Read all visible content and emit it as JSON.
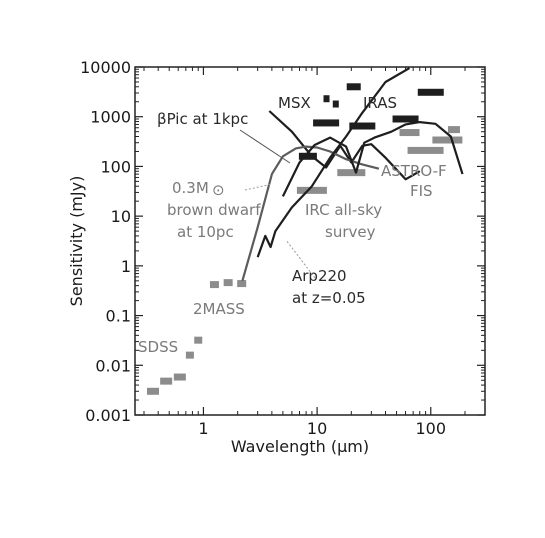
{
  "chart_data": {
    "type": "scatter",
    "xlabel": "Wavelength (µm)",
    "ylabel": "Sensitivity (mJy)",
    "x_scale": "log",
    "y_scale": "log",
    "xlim": [
      0.25,
      300
    ],
    "ylim": [
      0.001,
      10000
    ],
    "x_ticks": [
      {
        "value": 1,
        "label": "1"
      },
      {
        "value": 10,
        "label": "10"
      },
      {
        "value": 100,
        "label": "100"
      }
    ],
    "y_ticks": [
      {
        "value": 0.001,
        "label": "0.001"
      },
      {
        "value": 0.01,
        "label": "0.01"
      },
      {
        "value": 0.1,
        "label": "0.1"
      },
      {
        "value": 1,
        "label": "1"
      },
      {
        "value": 10,
        "label": "10"
      },
      {
        "value": 100,
        "label": "100"
      },
      {
        "value": 1000,
        "label": "1000"
      },
      {
        "value": 10000,
        "label": "10000"
      }
    ],
    "grid": false,
    "colors": {
      "dark": "#1e1e1e",
      "mid": "#5c5c5c",
      "light": "#8c8c8c"
    },
    "survey_limits": [
      {
        "survey": "SDSS",
        "shade": "light",
        "points": [
          [
            0.36,
            0.003
          ],
          [
            0.47,
            0.0048
          ],
          [
            0.62,
            0.0058
          ],
          [
            0.76,
            0.016
          ],
          [
            0.9,
            0.032
          ]
        ]
      },
      {
        "survey": "2MASS",
        "shade": "light",
        "points": [
          [
            1.25,
            0.42
          ],
          [
            1.65,
            0.46
          ],
          [
            2.17,
            0.44
          ]
        ]
      },
      {
        "survey": "MSX",
        "shade": "dark",
        "points": [
          [
            8.3,
            160
          ],
          [
            12.1,
            2300
          ],
          [
            14.6,
            1800
          ],
          [
            21,
            4000
          ]
        ]
      },
      {
        "survey": "IRAS",
        "shade": "dark",
        "points": [
          [
            12,
            750
          ],
          [
            25,
            650
          ],
          [
            60,
            900
          ],
          [
            100,
            3100
          ]
        ]
      },
      {
        "survey": "IRC all-sky survey",
        "shade": "light",
        "points": [
          [
            9,
            33
          ],
          [
            20,
            75
          ]
        ]
      },
      {
        "survey": "ASTRO-F FIS",
        "shade": "light",
        "points": [
          [
            65,
            480
          ],
          [
            90,
            210
          ],
          [
            140,
            340
          ],
          [
            160,
            550
          ]
        ]
      }
    ],
    "curves": [
      {
        "label": "βPic at 1kpc",
        "shade": "dark",
        "points": [
          [
            3.8,
            1300
          ],
          [
            6,
            500
          ],
          [
            9,
            160
          ],
          [
            12,
            95
          ],
          [
            16,
            260
          ],
          [
            20,
            120
          ],
          [
            25,
            260
          ],
          [
            30,
            280
          ],
          [
            40,
            150
          ],
          [
            60,
            55
          ],
          [
            80,
            80
          ]
        ]
      },
      {
        "label": "0.3M brown dwarf at 10pc",
        "shade": "mid",
        "points": [
          [
            2.2,
            0.5
          ],
          [
            3,
            6
          ],
          [
            4,
            70
          ],
          [
            5,
            160
          ],
          [
            6.5,
            230
          ],
          [
            8,
            250
          ],
          [
            10,
            240
          ],
          [
            13,
            200
          ],
          [
            18,
            140
          ],
          [
            25,
            110
          ],
          [
            35,
            90
          ]
        ]
      },
      {
        "label": "IRC all-sky survey",
        "shade": "dark",
        "points": [
          [
            5,
            25
          ],
          [
            7,
            120
          ],
          [
            9.5,
            270
          ],
          [
            13,
            380
          ],
          [
            18,
            250
          ],
          [
            22,
            75
          ],
          [
            26,
            300
          ],
          [
            32,
            380
          ],
          [
            45,
            500
          ],
          [
            60,
            700
          ],
          [
            80,
            780
          ],
          [
            110,
            720
          ],
          [
            150,
            400
          ],
          [
            190,
            70
          ]
        ]
      },
      {
        "label": "Arp220 at z=0.05",
        "shade": "dark",
        "points": [
          [
            3.0,
            1.5
          ],
          [
            3.5,
            4
          ],
          [
            3.9,
            2.4
          ],
          [
            4.3,
            5
          ],
          [
            6,
            15
          ],
          [
            9,
            40
          ],
          [
            13,
            150
          ],
          [
            18,
            400
          ],
          [
            25,
            1200
          ],
          [
            40,
            5000
          ],
          [
            65,
            11000
          ]
        ]
      }
    ],
    "annotations": [
      {
        "text": "SDSS",
        "shade": "light"
      },
      {
        "text": "2MASS",
        "shade": "light"
      },
      {
        "text": "MSX",
        "shade": "dark"
      },
      {
        "text": "IRAS",
        "shade": "dark"
      },
      {
        "text": "βPic at 1kpc",
        "shade": "dark"
      },
      {
        "text": "0.3M",
        "shade": "light",
        "subscript": "⊙"
      },
      {
        "text": "brown dwarf",
        "shade": "light"
      },
      {
        "text": "at 10pc",
        "shade": "light"
      },
      {
        "text": "IRC all-sky",
        "shade": "light"
      },
      {
        "text": "survey",
        "shade": "light"
      },
      {
        "text": "ASTRO-F",
        "shade": "light"
      },
      {
        "text": "FIS",
        "shade": "light"
      },
      {
        "text": "Arp220",
        "shade": "dark"
      },
      {
        "text": "at z=0.05",
        "shade": "dark"
      }
    ]
  }
}
